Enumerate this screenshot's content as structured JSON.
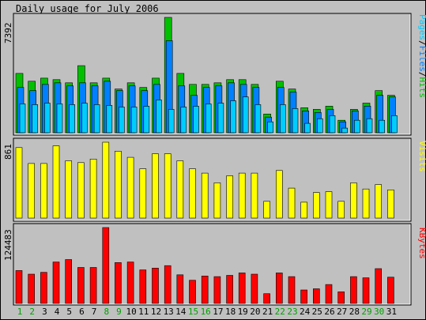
{
  "chart_data": {
    "type": "bar",
    "title": "Daily usage for July 2006",
    "categories": [
      "1",
      "2",
      "3",
      "4",
      "5",
      "6",
      "7",
      "8",
      "9",
      "10",
      "11",
      "12",
      "13",
      "14",
      "15",
      "16",
      "17",
      "18",
      "19",
      "20",
      "21",
      "22",
      "23",
      "24",
      "25",
      "26",
      "27",
      "28",
      "29",
      "30",
      "31"
    ],
    "weekend_days": [
      "1",
      "2",
      "8",
      "9",
      "15",
      "16",
      "22",
      "23",
      "29",
      "30"
    ],
    "panels": [
      {
        "id": "hits",
        "max_label": "7392",
        "ymax": 7392,
        "legend": [
          {
            "text": "Pages",
            "color": "#00ccff"
          },
          {
            "text": "/",
            "color": "#000000"
          },
          {
            "text": "Files",
            "color": "#0080ff"
          },
          {
            "text": "/",
            "color": "#000000"
          },
          {
            "text": "Hits",
            "color": "#00c000"
          }
        ],
        "series": [
          {
            "name": "Hits",
            "color": "#00c000",
            "values": [
              3800,
              3300,
              3500,
              3400,
              3200,
              4300,
              3200,
              3500,
              2800,
              3200,
              2900,
              3500,
              7392,
              3800,
              3100,
              3100,
              3200,
              3400,
              3400,
              3100,
              1200,
              3300,
              2800,
              1600,
              1500,
              1700,
              800,
              1500,
              1900,
              2700,
              2400
            ]
          },
          {
            "name": "Files",
            "color": "#0080ff",
            "values": [
              2900,
              2700,
              3100,
              3200,
              3000,
              3200,
              3000,
              3300,
              2700,
              3000,
              2700,
              3100,
              5900,
              3000,
              2400,
              2900,
              3000,
              3200,
              3100,
              2900,
              1000,
              2900,
              2600,
              1400,
              1300,
              1500,
              700,
              1400,
              1700,
              2400,
              2300
            ]
          },
          {
            "name": "Pages",
            "color": "#00ccff",
            "values": [
              1850,
              1800,
              1900,
              1850,
              1800,
              1900,
              1800,
              1750,
              1650,
              1650,
              1700,
              2100,
              1500,
              1650,
              1700,
              1850,
              1900,
              2050,
              2300,
              1800,
              700,
              1800,
              1550,
              600,
              900,
              1100,
              300,
              800,
              900,
              800,
              1100
            ]
          }
        ]
      },
      {
        "id": "visits",
        "max_label": "861",
        "ymax": 861,
        "legend": [
          {
            "text": "Visits",
            "color": "#ffff00"
          }
        ],
        "series": [
          {
            "name": "Visits",
            "color": "#ffff00",
            "values": [
              800,
              620,
              620,
              820,
              650,
              630,
              670,
              861,
              760,
              690,
              560,
              730,
              730,
              650,
              560,
              510,
              400,
              480,
              510,
              510,
              190,
              540,
              340,
              180,
              290,
              300,
              190,
              400,
              330,
              380,
              320
            ]
          }
        ]
      },
      {
        "id": "kbytes",
        "max_label": "124483",
        "ymax": 124483,
        "legend": [
          {
            "text": "KBytes",
            "color": "#ff0000"
          }
        ],
        "series": [
          {
            "name": "KBytes",
            "color": "#ff0000",
            "values": [
              54000,
              48000,
              51000,
              68000,
              72000,
              59000,
              59000,
              124483,
              67000,
              68000,
              55000,
              58000,
              62000,
              47000,
              38000,
              45000,
              44000,
              46000,
              50000,
              48000,
              16000,
              50000,
              44000,
              22000,
              24000,
              31000,
              19000,
              44000,
              42000,
              57000,
              43000
            ]
          }
        ]
      }
    ]
  }
}
